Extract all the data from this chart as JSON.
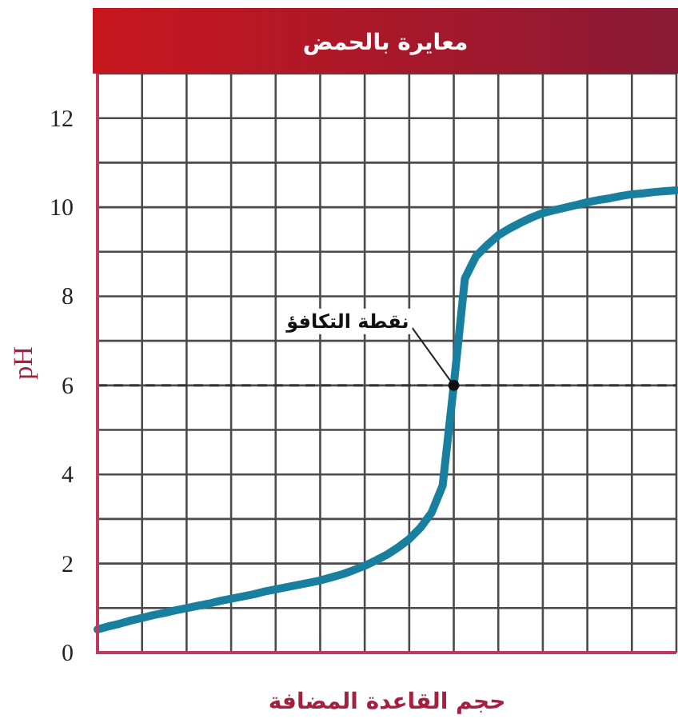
{
  "chart_data": {
    "type": "line",
    "title": "معايرة بالحمض",
    "xlabel": "حجم القاعدة المضافة",
    "ylabel": "pH",
    "categories": [
      null,
      null,
      null,
      null,
      null,
      null,
      null,
      null,
      null,
      null,
      null,
      null,
      null,
      null,
      null,
      null,
      null,
      null,
      null,
      null,
      null,
      null,
      null,
      null,
      null,
      null,
      null,
      null,
      null,
      null,
      null,
      null,
      null,
      null,
      null,
      null,
      null,
      null,
      null,
      null,
      null,
      null,
      null,
      null,
      null,
      null,
      null,
      null,
      null,
      null,
      null,
      null,
      null
    ],
    "series": [
      {
        "color": "#18809e",
        "values": [
          0.52,
          0.59,
          0.65,
          0.72,
          0.78,
          0.84,
          0.89,
          0.95,
          1.0,
          1.05,
          1.1,
          1.16,
          1.21,
          1.26,
          1.31,
          1.37,
          1.42,
          1.47,
          1.52,
          1.57,
          1.62,
          1.69,
          1.76,
          1.85,
          1.95,
          2.07,
          2.2,
          2.36,
          2.55,
          2.8,
          3.14,
          3.75,
          6.0,
          8.4,
          8.9,
          9.15,
          9.37,
          9.52,
          9.65,
          9.77,
          9.87,
          9.93,
          9.99,
          10.05,
          10.11,
          10.16,
          10.2,
          10.25,
          10.29,
          10.31,
          10.34,
          10.36,
          10.38
        ]
      }
    ],
    "ylim": [
      0,
      13
    ],
    "yticks": [
      0,
      {
        "value": 1,
        "label": null
      },
      2,
      {
        "value": 3,
        "label": null
      },
      4,
      {
        "value": 5,
        "label": null
      },
      6,
      {
        "value": 7,
        "label": null
      },
      8,
      {
        "value": 9,
        "label": null
      },
      10,
      {
        "value": 11,
        "label": null
      },
      12
    ],
    "grid": true,
    "tick_labels": "y",
    "marker": "none",
    "line_style": "solid",
    "ref_lines": [
      {
        "axis": "y",
        "value": 6,
        "line_style": "dashed",
        "color": "#333333"
      }
    ],
    "annotations": [
      {
        "text": "نقطة التكافؤ",
        "y": 6
      }
    ]
  }
}
